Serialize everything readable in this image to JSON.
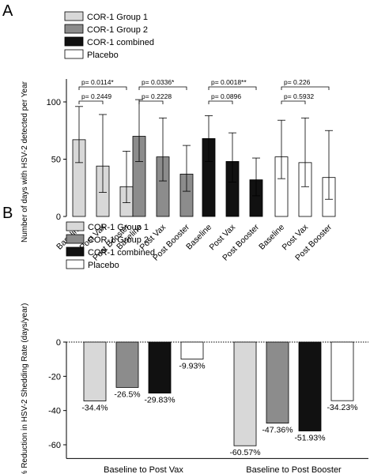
{
  "colors": {
    "group1": "#d8d8d8",
    "group2": "#8c8c8c",
    "combined": "#111111",
    "placebo": "#ffffff",
    "stroke": "#000000"
  },
  "chart_data": [
    {
      "panel_label": "A",
      "type": "bar",
      "ylabel": "Number of days with HSV-2 detected per Year",
      "ylim": [
        0,
        120
      ],
      "yticks": [
        0,
        50,
        100
      ],
      "legend_placement": "top-center",
      "legend": [
        "COR-1 Group 1",
        "COR-1 Group 2",
        "COR-1 combined",
        "Placebo"
      ],
      "categories": [
        "Baseline",
        "Post Vax",
        "Post Booster"
      ],
      "series": [
        {
          "name": "COR-1 Group 1",
          "color_key": "group1",
          "values": [
            67,
            44,
            26
          ],
          "err_low": [
            47,
            21,
            12
          ],
          "err_high": [
            96,
            89,
            57
          ],
          "pvalues": [
            "p= 0.2449",
            "p= 0.0114*"
          ]
        },
        {
          "name": "COR-1 Group 2",
          "color_key": "group2",
          "values": [
            70,
            52,
            37
          ],
          "err_low": [
            48,
            31,
            22
          ],
          "err_high": [
            102,
            86,
            62
          ],
          "pvalues": [
            "p= 0.2228",
            "p= 0.0336*"
          ]
        },
        {
          "name": "COR-1 combined",
          "color_key": "combined",
          "values": [
            68,
            48,
            32
          ],
          "err_low": [
            48,
            30,
            18
          ],
          "err_high": [
            88,
            73,
            51
          ],
          "pvalues": [
            "p= 0.0896",
            "p= 0.0018**"
          ]
        },
        {
          "name": "Placebo",
          "color_key": "placebo",
          "values": [
            52,
            47,
            34
          ],
          "err_low": [
            33,
            26,
            15
          ],
          "err_high": [
            84,
            86,
            75
          ],
          "pvalues": [
            "p= 0.5932",
            "p= 0.226"
          ]
        }
      ]
    },
    {
      "panel_label": "B",
      "type": "bar",
      "ylabel": "% Reduction in HSV-2 Shedding Rate (days/year)",
      "ylim": [
        -68,
        0
      ],
      "yticks": [
        0,
        -20,
        -40,
        -60
      ],
      "legend_placement": "top-left",
      "legend": [
        "COR-1 Group 1",
        "COR-1 Group 2",
        "COR-1 combined",
        "Placebo"
      ],
      "categories": [
        "Baseline to Post Vax",
        "Baseline to Post Booster"
      ],
      "series": [
        {
          "name": "COR-1 Group 1",
          "color_key": "group1",
          "values": [
            -34.4,
            -60.57
          ],
          "labels": [
            "-34.4%",
            "-60.57%"
          ]
        },
        {
          "name": "COR-1 Group 2",
          "color_key": "group2",
          "values": [
            -26.5,
            -47.36
          ],
          "labels": [
            "-26.5%",
            "-47.36%"
          ]
        },
        {
          "name": "COR-1 combined",
          "color_key": "combined",
          "values": [
            -29.83,
            -51.93
          ],
          "labels": [
            "-29.83%",
            "-51.93%"
          ]
        },
        {
          "name": "Placebo",
          "color_key": "placebo",
          "values": [
            -9.93,
            -34.23
          ],
          "labels": [
            "-9.93%",
            "-34.23%"
          ]
        }
      ]
    }
  ]
}
